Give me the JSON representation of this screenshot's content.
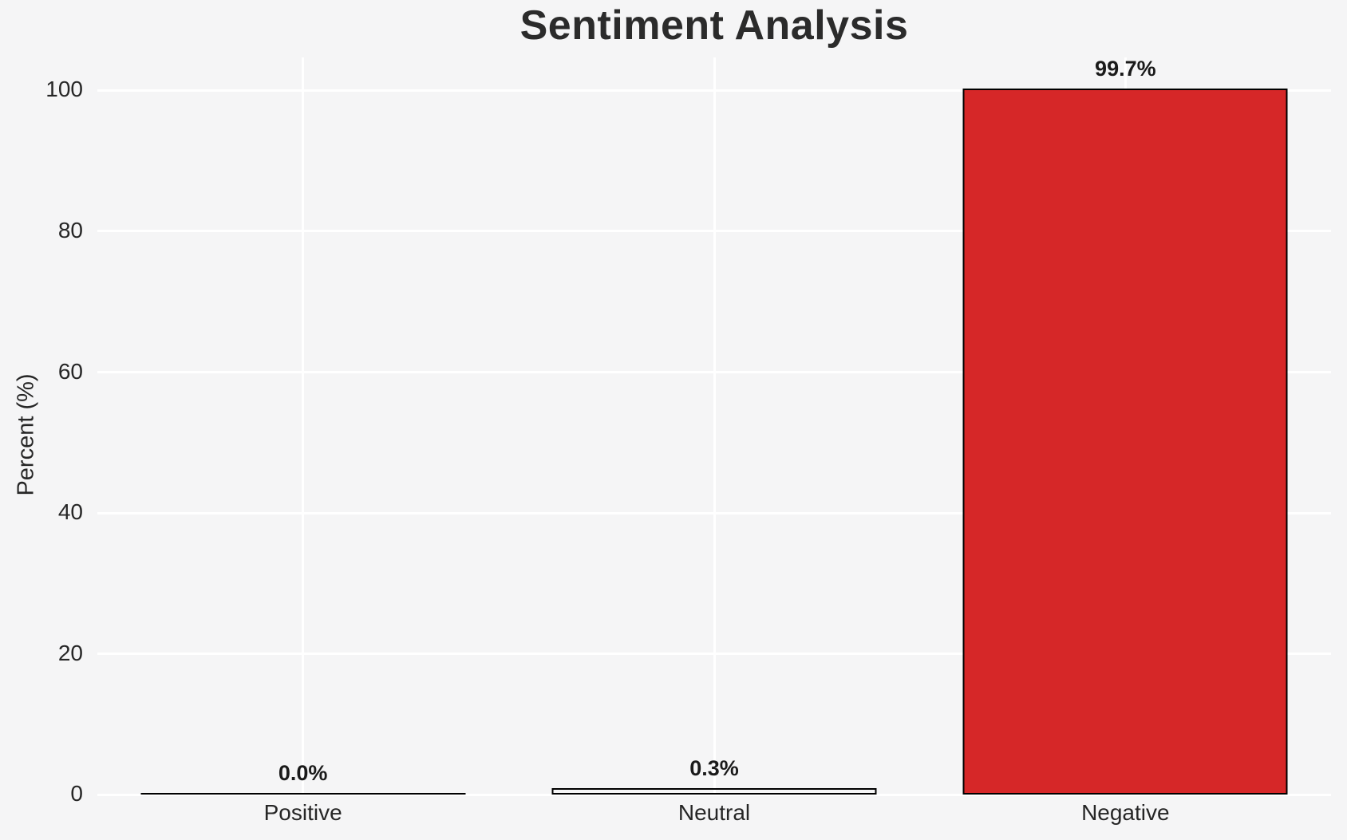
{
  "title": "Sentiment Analysis",
  "y_axis": {
    "label": "Percent (%)",
    "tick_labels": [
      "0",
      "20",
      "40",
      "60",
      "80",
      "100"
    ]
  },
  "x_axis": {
    "tick_labels": [
      "Positive",
      "Neutral",
      "Negative"
    ]
  },
  "chart_data": {
    "type": "bar",
    "title": "Sentiment Analysis",
    "xlabel": "",
    "ylabel": "Percent (%)",
    "categories": [
      "Positive",
      "Neutral",
      "Negative"
    ],
    "values": [
      0.0,
      0.3,
      99.7
    ],
    "value_labels": [
      "0.0%",
      "0.3%",
      "99.7%"
    ],
    "yticks": [
      0,
      20,
      40,
      60,
      80,
      100
    ],
    "ylim": [
      0,
      104.7
    ],
    "grid": "on",
    "grid_style": "white horizontal and vertical gridlines on light gray panel",
    "legend": "none",
    "bar_fills": [
      "none",
      "none",
      "#d62728"
    ],
    "bar_edge_color": "#000000"
  },
  "colors": {
    "background": "#f5f5f6",
    "gridline": "#ffffff",
    "negative_bar": "#d62728",
    "bar_edge": "#000000",
    "text": "#262626"
  }
}
